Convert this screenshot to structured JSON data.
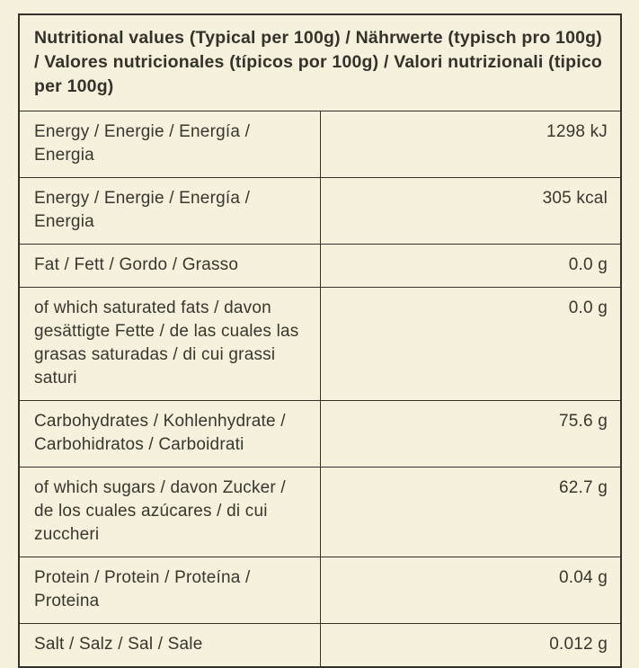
{
  "table": {
    "title": "Nutritional values (Typical per 100g) / Nährwerte (typisch pro 100g) / Valores nutricionales (típicos por 100g) / Valori nutrizionali (tipico per 100g)",
    "rows": [
      {
        "label": "Energy / Energie / Energía / Energia",
        "value": "1298 kJ"
      },
      {
        "label": "Energy / Energie / Energía / Energia",
        "value": "305 kcal"
      },
      {
        "label": "Fat / Fett / Gordo / Grasso",
        "value": "0.0 g"
      },
      {
        "label": "of which saturated fats / davon gesättigte Fette / de las cuales las grasas saturadas / di cui grassi saturi",
        "value": "0.0 g"
      },
      {
        "label": "Carbohydrates / Kohlenhydrate / Carbohidratos / Carboidrati",
        "value": "75.6 g"
      },
      {
        "label": "of which sugars / davon Zucker / de los cuales azúcares / di cui zuccheri",
        "value": "62.7 g"
      },
      {
        "label": "Protein / Protein / Proteína / Proteina",
        "value": "0.04 g"
      },
      {
        "label": "Salt / Salz / Sal / Sale",
        "value": "0.012 g"
      }
    ],
    "colors": {
      "background": "#f5f1dc",
      "text": "#38372f",
      "border": "#33322b"
    }
  }
}
